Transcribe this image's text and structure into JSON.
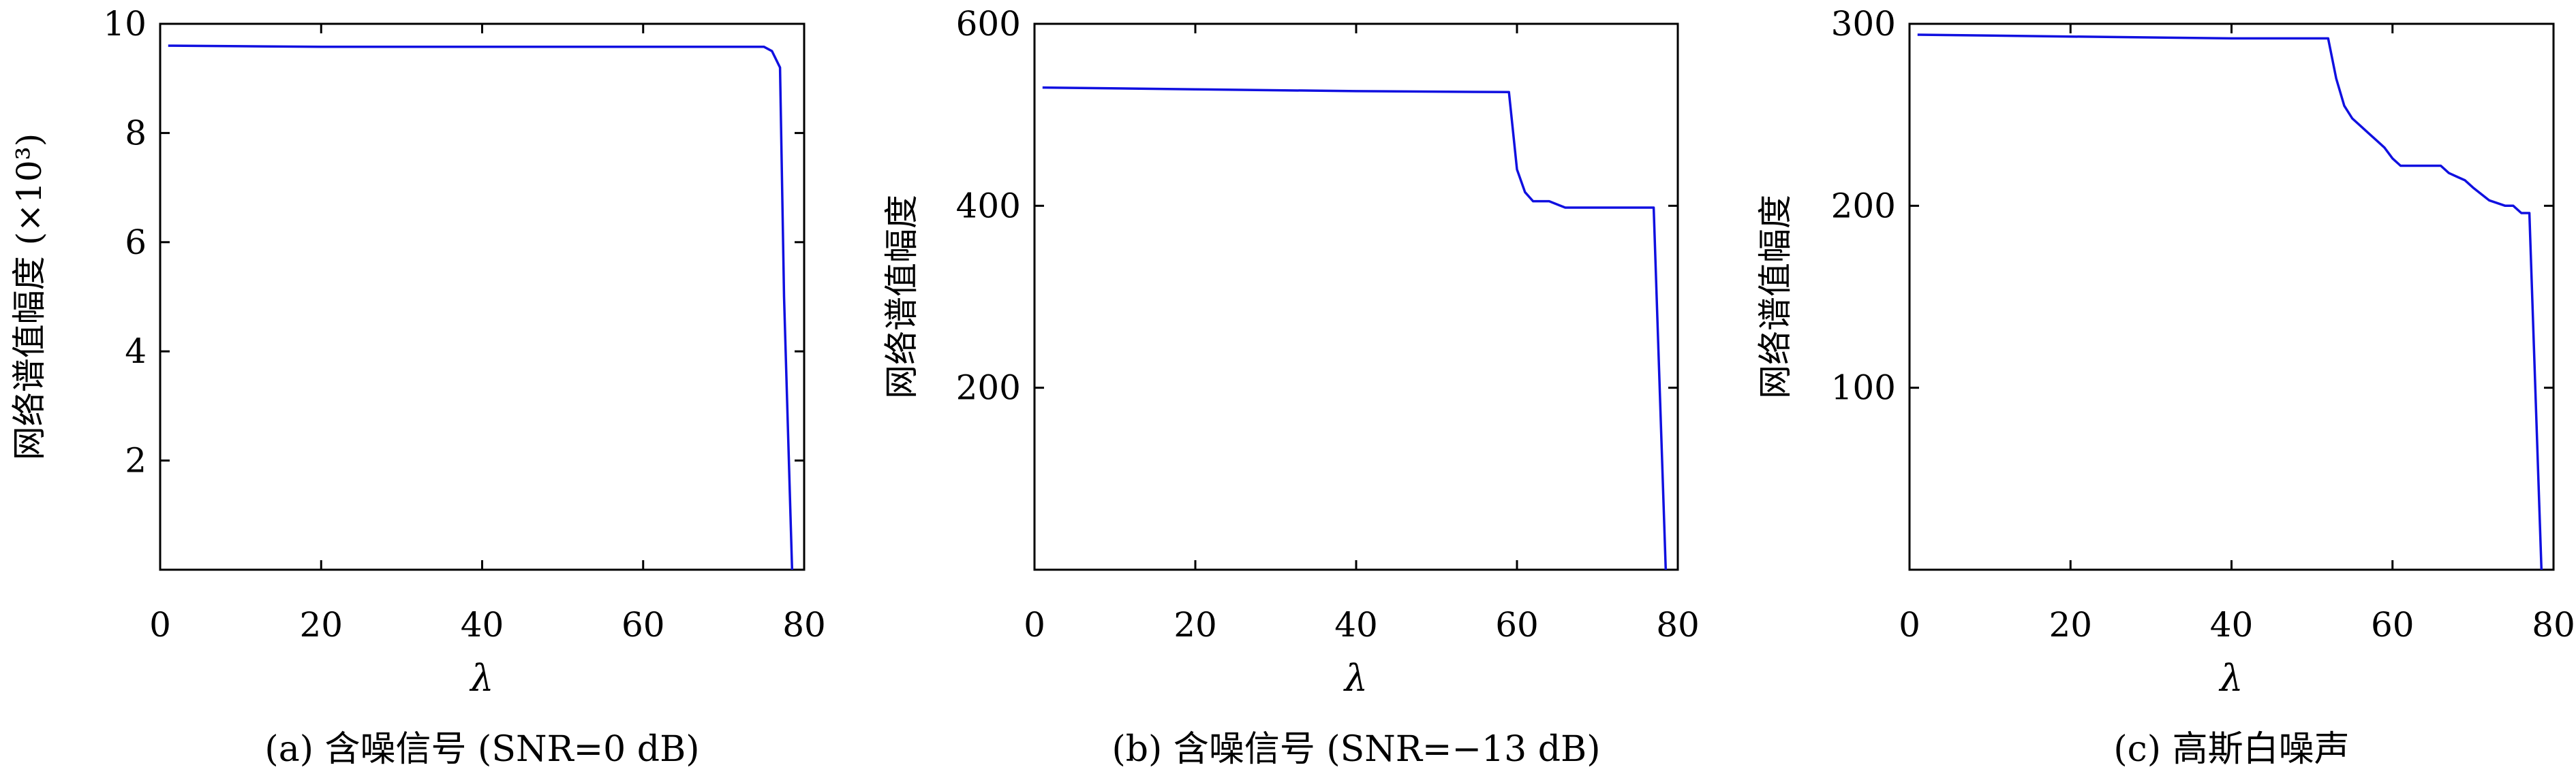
{
  "chart_data": [
    {
      "type": "line",
      "caption": "(a) 含噪信号 (SNR=0 dB)",
      "xlabel": "λ",
      "ylabel": "网络谱值幅度 (×10³)",
      "xlim": [
        0,
        80
      ],
      "ylim": [
        0,
        10
      ],
      "xticks": [
        0,
        20,
        40,
        60,
        80
      ],
      "yticks": [
        2,
        4,
        6,
        8,
        10
      ],
      "ytick_labels": [
        "2",
        "4",
        "6",
        "8",
        "10"
      ],
      "line_color": "#1010e0",
      "series": [
        {
          "x": [
            1,
            10,
            20,
            30,
            40,
            50,
            60,
            70,
            75,
            76,
            77,
            77.5,
            78.5
          ],
          "y": [
            9.6,
            9.59,
            9.58,
            9.58,
            9.58,
            9.58,
            9.58,
            9.58,
            9.58,
            9.5,
            9.2,
            5.0,
            0
          ]
        }
      ]
    },
    {
      "type": "line",
      "caption": "(b) 含噪信号 (SNR=−13 dB)",
      "xlabel": "λ",
      "ylabel": "网络谱值幅度",
      "xlim": [
        0,
        80
      ],
      "ylim": [
        0,
        600
      ],
      "xticks": [
        0,
        20,
        40,
        60,
        80
      ],
      "yticks": [
        200,
        400,
        600
      ],
      "ytick_labels": [
        "200",
        "400",
        "600"
      ],
      "line_color": "#1010e0",
      "series": [
        {
          "x": [
            1,
            20,
            40,
            59,
            60,
            61,
            62,
            64,
            66,
            70,
            77,
            78.5
          ],
          "y": [
            530,
            528,
            526,
            525,
            440,
            415,
            405,
            405,
            398,
            398,
            398,
            0
          ]
        }
      ]
    },
    {
      "type": "line",
      "caption": "(c) 高斯白噪声",
      "xlabel": "λ",
      "ylabel": "网络谱值幅度",
      "xlim": [
        0,
        80
      ],
      "ylim": [
        0,
        300
      ],
      "xticks": [
        0,
        20,
        40,
        60,
        80
      ],
      "yticks": [
        100,
        200,
        300
      ],
      "ytick_labels": [
        "100",
        "200",
        "300"
      ],
      "line_color": "#1010e0",
      "series": [
        {
          "x": [
            1,
            20,
            40,
            52,
            53,
            54,
            55,
            56,
            57,
            58,
            59,
            60,
            61,
            62,
            64,
            66,
            67,
            68,
            69,
            70,
            72,
            74,
            75,
            76,
            77,
            78.5
          ],
          "y": [
            294,
            293,
            292,
            292,
            270,
            255,
            248,
            244,
            240,
            236,
            232,
            226,
            222,
            222,
            222,
            222,
            218,
            216,
            214,
            210,
            203,
            200,
            200,
            196,
            196,
            0
          ]
        }
      ]
    }
  ]
}
